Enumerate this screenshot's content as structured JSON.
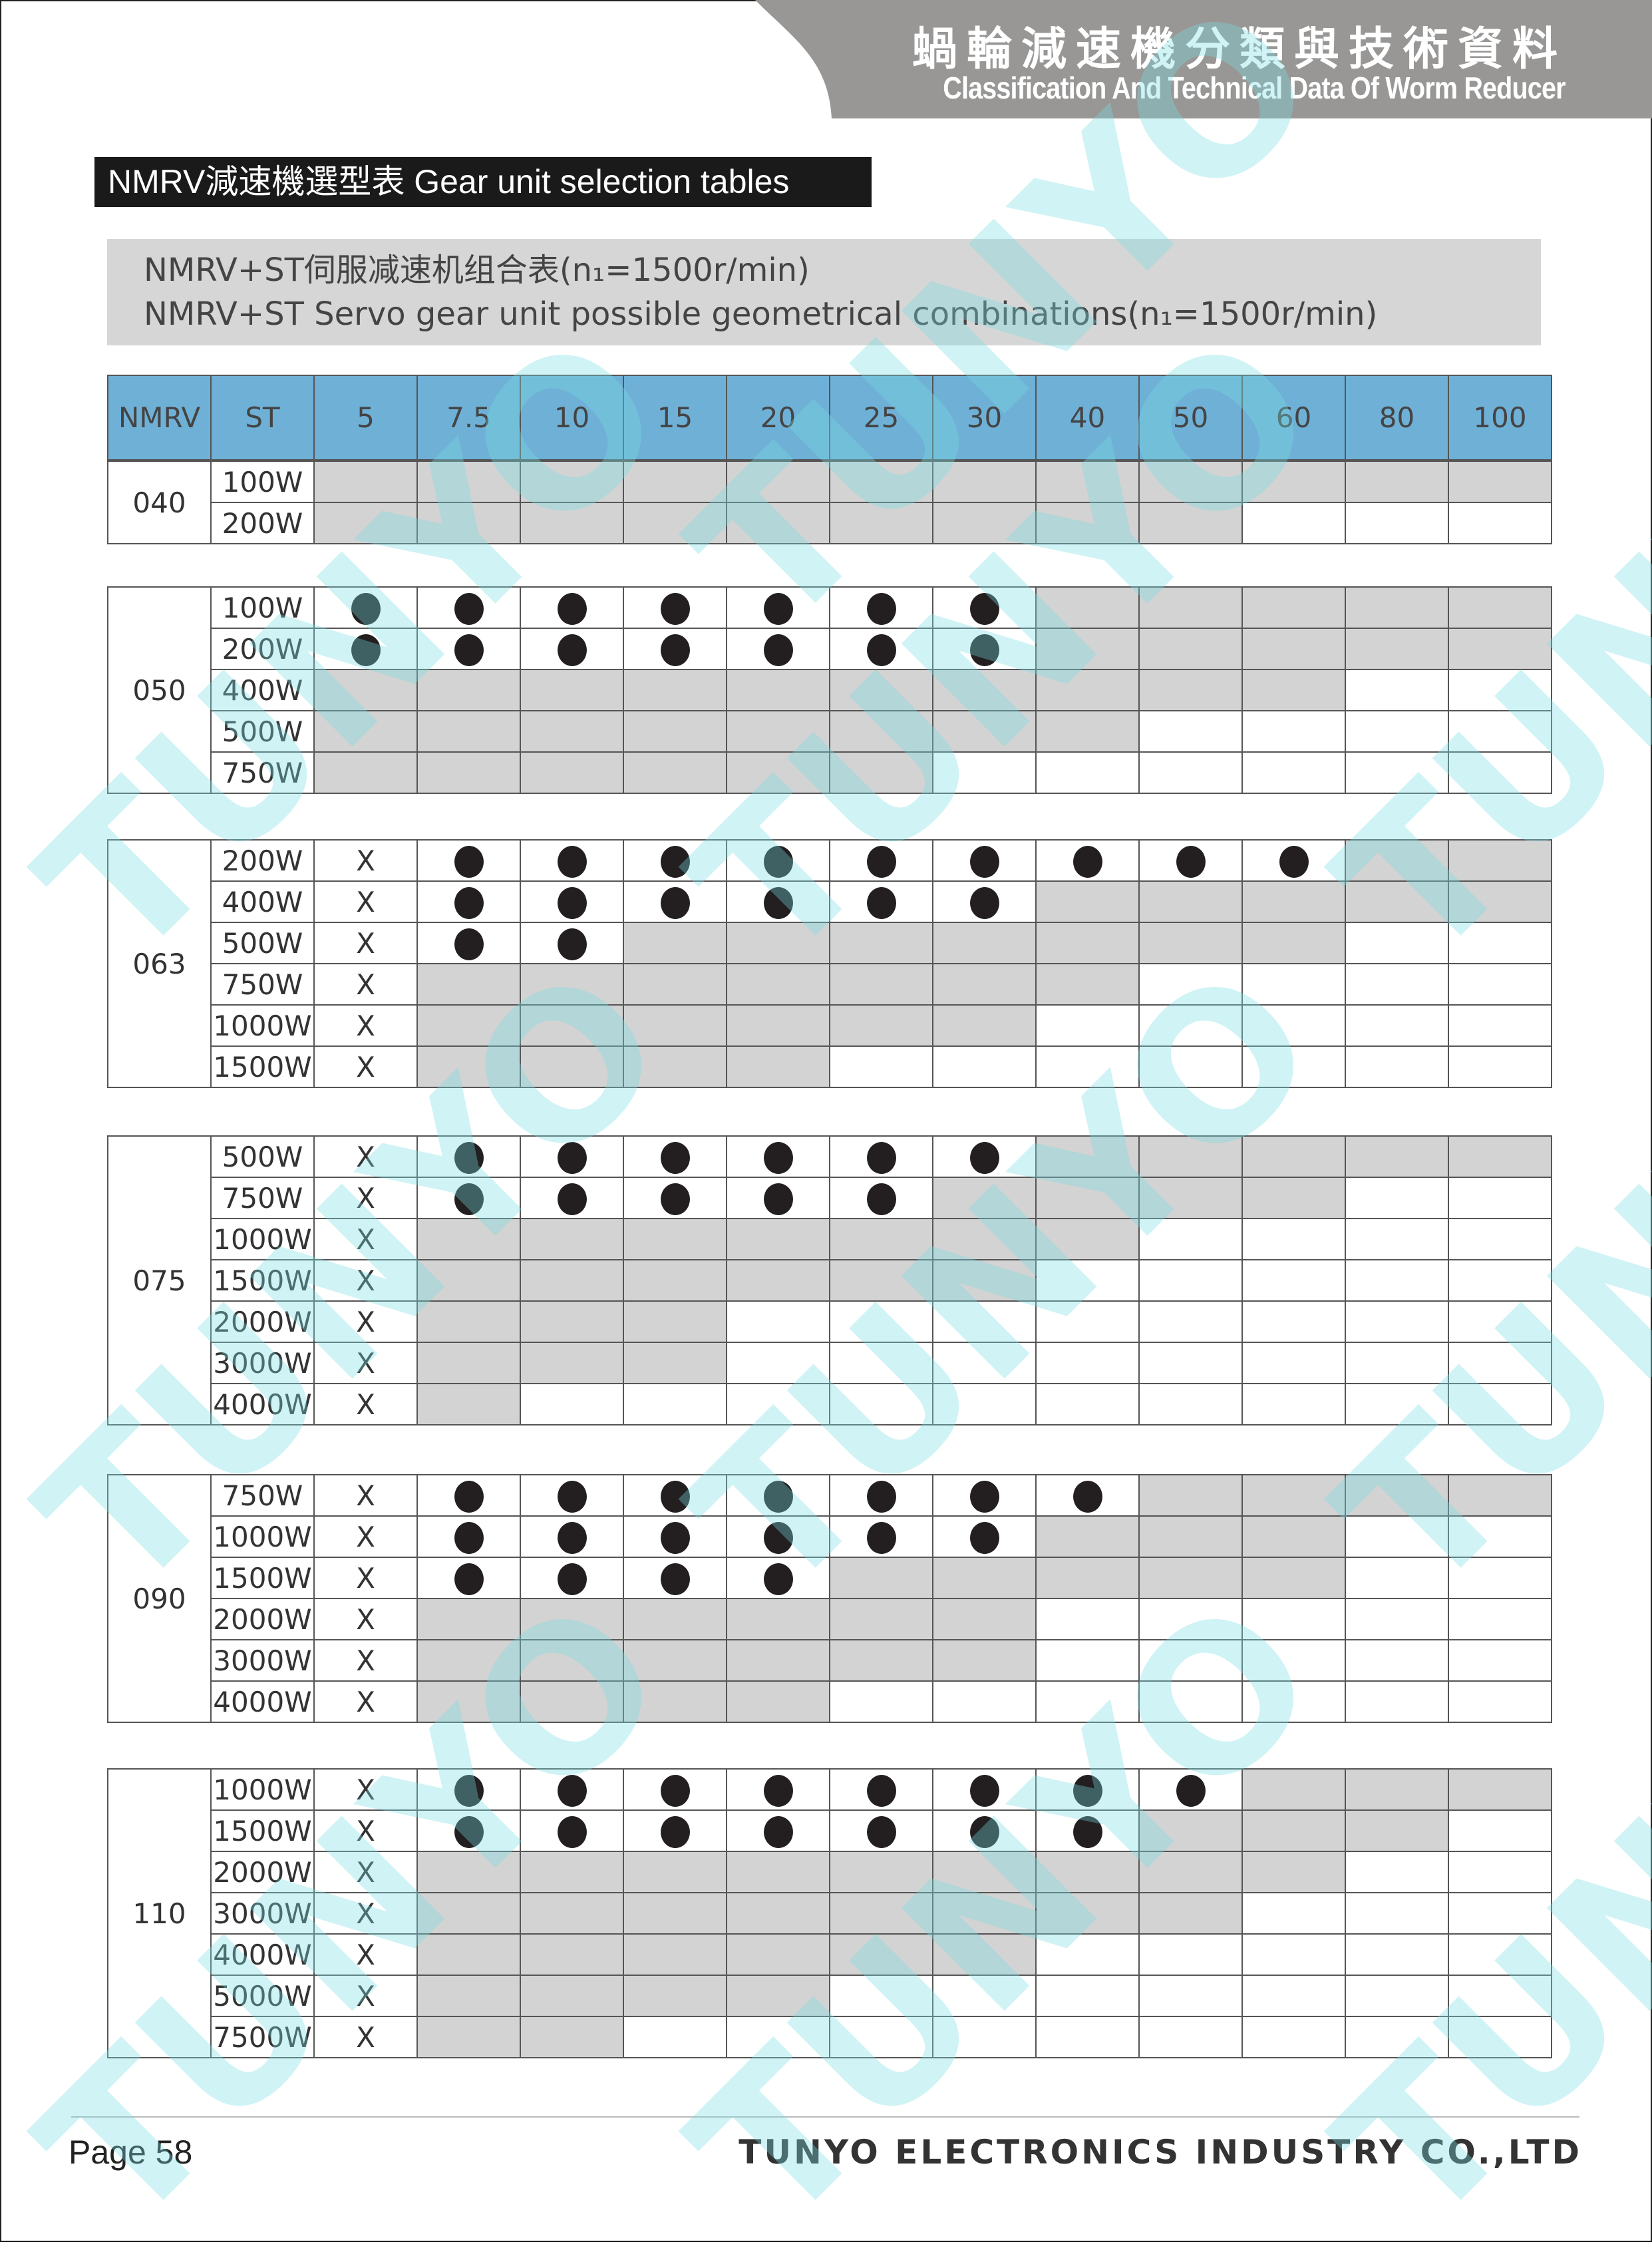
{
  "header": {
    "title_cn": "蝸輪減速機分類與技術資料",
    "title_en": "Classification And Technical Data Of Worm Reducer"
  },
  "section_title": "NMRV減速機選型表 Gear unit selection tables",
  "subtitle": {
    "line1": "NMRV+ST伺服减速机组合表(n₁=1500r/min)",
    "line2": "NMRV+ST Servo gear unit possible geometrical combinations(n₁=1500r/min)"
  },
  "table": {
    "headers": [
      "NMRV",
      "ST",
      "5",
      "7.5",
      "10",
      "15",
      "20",
      "25",
      "30",
      "40",
      "50",
      "60",
      "80",
      "100"
    ],
    "groups": [
      {
        "size": "040",
        "rows": [
          {
            "st": "100W",
            "cells": [
              "gray",
              "gray",
              "gray",
              "gray",
              "gray",
              "gray",
              "gray",
              "gray",
              "gray",
              "gray",
              "gray",
              "gray"
            ]
          },
          {
            "st": "200W",
            "cells": [
              "gray",
              "gray",
              "gray",
              "gray",
              "gray",
              "gray",
              "gray",
              "gray",
              "gray",
              "empty",
              "empty",
              "empty"
            ]
          }
        ]
      },
      {
        "size": "050",
        "rows": [
          {
            "st": "100W",
            "cells": [
              "dot",
              "dot",
              "dot",
              "dot",
              "dot",
              "dot",
              "dot",
              "gray",
              "gray",
              "gray",
              "gray",
              "gray"
            ]
          },
          {
            "st": "200W",
            "cells": [
              "dot",
              "dot",
              "dot",
              "dot",
              "dot",
              "dot",
              "dot",
              "gray",
              "gray",
              "gray",
              "gray",
              "gray"
            ]
          },
          {
            "st": "400W",
            "cells": [
              "gray",
              "gray",
              "gray",
              "gray",
              "gray",
              "gray",
              "gray",
              "gray",
              "gray",
              "gray",
              "empty",
              "empty"
            ]
          },
          {
            "st": "500W",
            "cells": [
              "gray",
              "gray",
              "gray",
              "gray",
              "gray",
              "gray",
              "gray",
              "gray",
              "empty",
              "empty",
              "empty",
              "empty"
            ]
          },
          {
            "st": "750W",
            "cells": [
              "gray",
              "gray",
              "gray",
              "gray",
              "gray",
              "gray",
              "empty",
              "empty",
              "empty",
              "empty",
              "empty",
              "empty"
            ]
          }
        ]
      },
      {
        "size": "063",
        "rows": [
          {
            "st": "200W",
            "cells": [
              "X",
              "dot",
              "dot",
              "dot",
              "dot",
              "dot",
              "dot",
              "dot",
              "dot",
              "dot",
              "gray",
              "gray"
            ]
          },
          {
            "st": "400W",
            "cells": [
              "X",
              "dot",
              "dot",
              "dot",
              "dot",
              "dot",
              "dot",
              "gray",
              "gray",
              "gray",
              "gray",
              "gray"
            ]
          },
          {
            "st": "500W",
            "cells": [
              "X",
              "dot",
              "dot",
              "gray",
              "gray",
              "gray",
              "gray",
              "gray",
              "gray",
              "gray",
              "empty",
              "empty"
            ]
          },
          {
            "st": "750W",
            "cells": [
              "X",
              "gray",
              "gray",
              "gray",
              "gray",
              "gray",
              "gray",
              "gray",
              "empty",
              "empty",
              "empty",
              "empty"
            ]
          },
          {
            "st": "1000W",
            "cells": [
              "X",
              "gray",
              "gray",
              "gray",
              "gray",
              "gray",
              "gray",
              "empty",
              "empty",
              "empty",
              "empty",
              "empty"
            ]
          },
          {
            "st": "1500W",
            "cells": [
              "X",
              "gray",
              "gray",
              "gray",
              "gray",
              "empty",
              "empty",
              "empty",
              "empty",
              "empty",
              "empty",
              "empty"
            ]
          }
        ]
      },
      {
        "size": "075",
        "rows": [
          {
            "st": "500W",
            "cells": [
              "X",
              "dot",
              "dot",
              "dot",
              "dot",
              "dot",
              "dot",
              "gray",
              "gray",
              "gray",
              "gray",
              "gray"
            ]
          },
          {
            "st": "750W",
            "cells": [
              "X",
              "dot",
              "dot",
              "dot",
              "dot",
              "dot",
              "gray",
              "gray",
              "gray",
              "gray",
              "empty",
              "empty"
            ]
          },
          {
            "st": "1000W",
            "cells": [
              "X",
              "gray",
              "gray",
              "gray",
              "gray",
              "gray",
              "gray",
              "gray",
              "empty",
              "empty",
              "empty",
              "empty"
            ]
          },
          {
            "st": "1500W",
            "cells": [
              "X",
              "gray",
              "gray",
              "gray",
              "gray",
              "gray",
              "gray",
              "empty",
              "empty",
              "empty",
              "empty",
              "empty"
            ]
          },
          {
            "st": "2000W",
            "cells": [
              "X",
              "gray",
              "gray",
              "gray",
              "empty",
              "empty",
              "empty",
              "empty",
              "empty",
              "empty",
              "empty",
              "empty"
            ]
          },
          {
            "st": "3000W",
            "cells": [
              "X",
              "gray",
              "gray",
              "gray",
              "empty",
              "empty",
              "empty",
              "empty",
              "empty",
              "empty",
              "empty",
              "empty"
            ]
          },
          {
            "st": "4000W",
            "cells": [
              "X",
              "gray",
              "empty",
              "empty",
              "empty",
              "empty",
              "empty",
              "empty",
              "empty",
              "empty",
              "empty",
              "empty"
            ]
          }
        ]
      },
      {
        "size": "090",
        "rows": [
          {
            "st": "750W",
            "cells": [
              "X",
              "dot",
              "dot",
              "dot",
              "dot",
              "dot",
              "dot",
              "dot",
              "gray",
              "gray",
              "gray",
              "gray"
            ]
          },
          {
            "st": "1000W",
            "cells": [
              "X",
              "dot",
              "dot",
              "dot",
              "dot",
              "dot",
              "dot",
              "gray",
              "gray",
              "gray",
              "empty",
              "empty"
            ]
          },
          {
            "st": "1500W",
            "cells": [
              "X",
              "dot",
              "dot",
              "dot",
              "dot",
              "gray",
              "gray",
              "gray",
              "gray",
              "gray",
              "empty",
              "empty"
            ]
          },
          {
            "st": "2000W",
            "cells": [
              "X",
              "gray",
              "gray",
              "gray",
              "gray",
              "gray",
              "gray",
              "empty",
              "empty",
              "empty",
              "empty",
              "empty"
            ]
          },
          {
            "st": "3000W",
            "cells": [
              "X",
              "gray",
              "gray",
              "gray",
              "gray",
              "gray",
              "gray",
              "empty",
              "empty",
              "empty",
              "empty",
              "empty"
            ]
          },
          {
            "st": "4000W",
            "cells": [
              "X",
              "gray",
              "gray",
              "gray",
              "gray",
              "empty",
              "empty",
              "empty",
              "empty",
              "empty",
              "empty",
              "empty"
            ]
          }
        ]
      },
      {
        "size": "110",
        "rows": [
          {
            "st": "1000W",
            "cells": [
              "X",
              "dot",
              "dot",
              "dot",
              "dot",
              "dot",
              "dot",
              "dot",
              "dot",
              "gray",
              "gray",
              "gray"
            ]
          },
          {
            "st": "1500W",
            "cells": [
              "X",
              "dot",
              "dot",
              "dot",
              "dot",
              "dot",
              "dot",
              "dot",
              "gray",
              "gray",
              "gray",
              "empty"
            ]
          },
          {
            "st": "2000W",
            "cells": [
              "X",
              "gray",
              "gray",
              "gray",
              "gray",
              "gray",
              "gray",
              "gray",
              "gray",
              "gray",
              "empty",
              "empty"
            ]
          },
          {
            "st": "3000W",
            "cells": [
              "X",
              "gray",
              "gray",
              "gray",
              "gray",
              "gray",
              "gray",
              "gray",
              "gray",
              "empty",
              "empty",
              "empty"
            ]
          },
          {
            "st": "4000W",
            "cells": [
              "X",
              "gray",
              "gray",
              "gray",
              "gray",
              "gray",
              "gray",
              "empty",
              "empty",
              "empty",
              "empty",
              "empty"
            ]
          },
          {
            "st": "5000W",
            "cells": [
              "X",
              "gray",
              "gray",
              "gray",
              "gray",
              "empty",
              "empty",
              "empty",
              "empty",
              "empty",
              "empty",
              "empty"
            ]
          },
          {
            "st": "7500W",
            "cells": [
              "X",
              "gray",
              "gray",
              "empty",
              "empty",
              "empty",
              "empty",
              "empty",
              "empty",
              "empty",
              "empty",
              "empty"
            ]
          }
        ]
      }
    ]
  },
  "footer": {
    "page": "Page 58",
    "company": "TUNYO ELECTRONICS INDUSTRY CO.,LTD"
  },
  "watermark": "TUNYO",
  "colors": {
    "header_row": "#6fb0d6",
    "unavailable": "#d3d3d3",
    "watermark": "#78dce1"
  }
}
